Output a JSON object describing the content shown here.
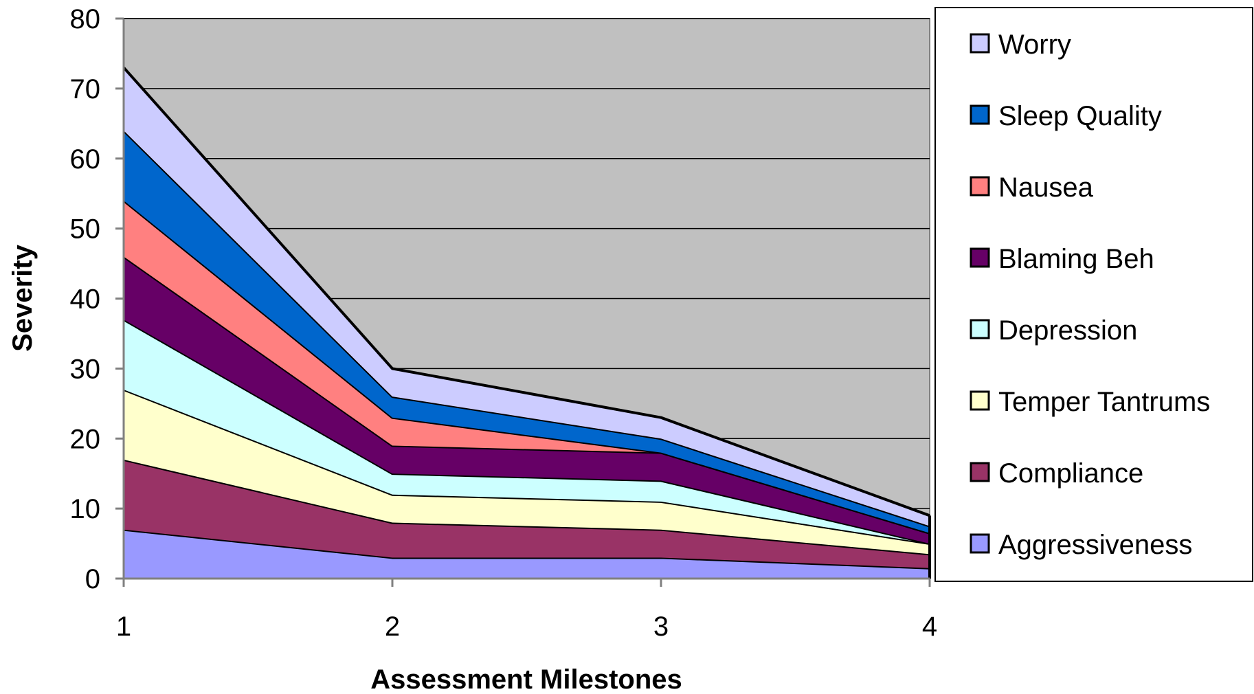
{
  "chart_data": {
    "type": "area",
    "stacked": true,
    "title": "",
    "xlabel": "Assessment Milestones",
    "ylabel": "Severity",
    "x": [
      "1",
      "2",
      "3",
      "4"
    ],
    "ylim": [
      0,
      80
    ],
    "yticks": [
      0,
      10,
      20,
      30,
      40,
      50,
      60,
      70,
      80
    ],
    "grid": true,
    "plot_background": "#c0c0c0",
    "legend_position": "right",
    "series": [
      {
        "name": "Aggressiveness",
        "color": "#9999ff",
        "values": [
          7,
          3,
          3,
          1.5
        ]
      },
      {
        "name": "Compliance",
        "color": "#993366",
        "values": [
          10,
          5,
          4,
          2
        ]
      },
      {
        "name": "Temper Tantrums",
        "color": "#ffffcc",
        "values": [
          10,
          4,
          4,
          1.5
        ]
      },
      {
        "name": "Depression",
        "color": "#ccffff",
        "values": [
          10,
          3,
          3,
          0
        ]
      },
      {
        "name": "Blaming Beh",
        "color": "#660066",
        "values": [
          9,
          4,
          4,
          1.5
        ]
      },
      {
        "name": "Nausea",
        "color": "#ff8080",
        "values": [
          8,
          4,
          0,
          0
        ]
      },
      {
        "name": "Sleep Quality",
        "color": "#0066cc",
        "values": [
          10,
          3,
          2,
          1
        ]
      },
      {
        "name": "Worry",
        "color": "#ccccff",
        "values": [
          9,
          4,
          3,
          1.5
        ]
      }
    ]
  }
}
